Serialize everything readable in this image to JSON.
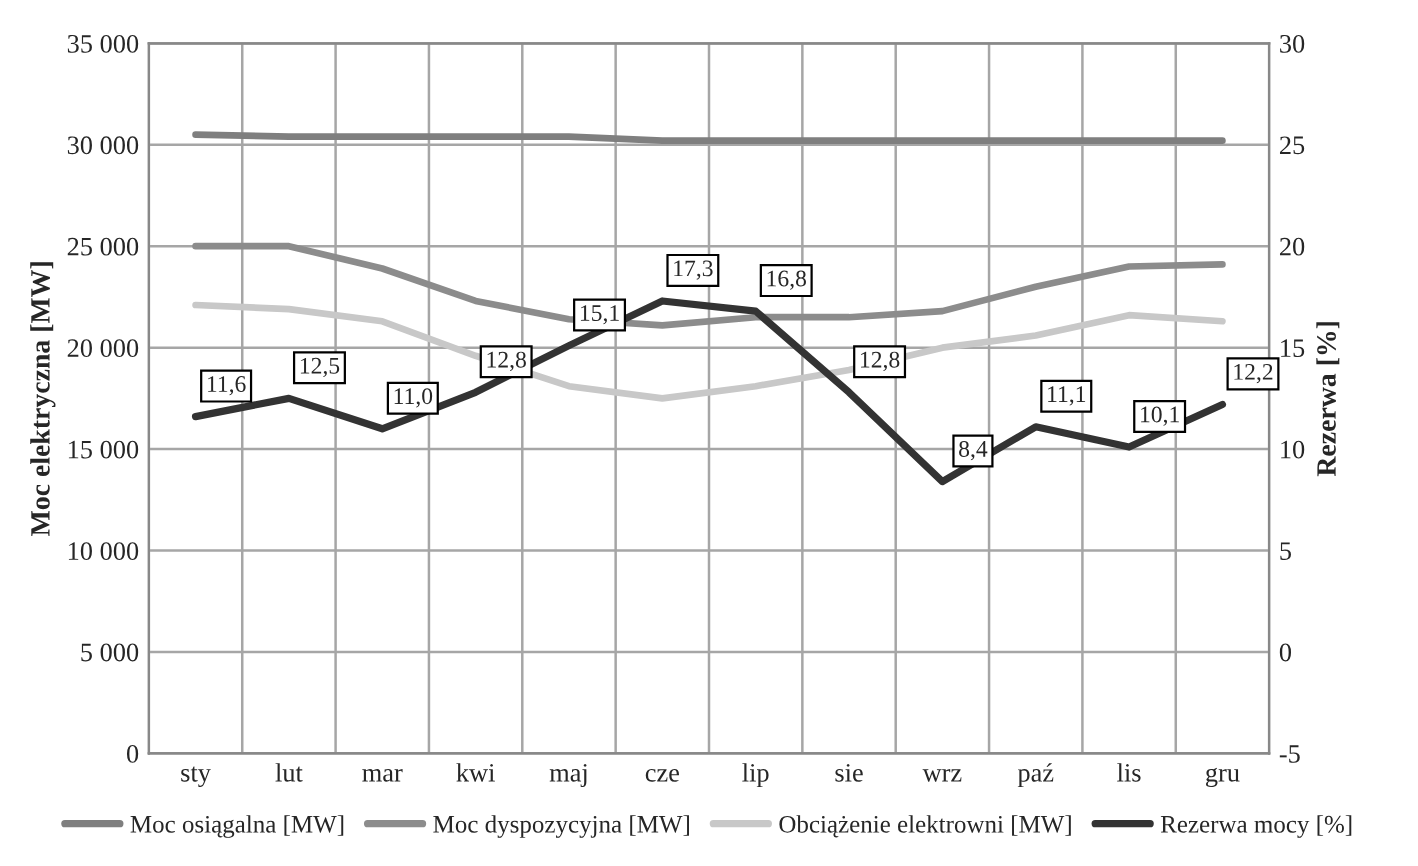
{
  "chart_data": {
    "type": "line",
    "ylabel": "Moc elektryczna [MW]",
    "y2label": "Rezerwa [%]",
    "categories": [
      "sty",
      "lut",
      "mar",
      "kwi",
      "maj",
      "cze",
      "lip",
      "sie",
      "wrz",
      "paź",
      "lis",
      "gru"
    ],
    "series": [
      {
        "name": "Moc osiągalna [MW]",
        "color": "#7f7f7f",
        "values": [
          30500,
          30400,
          30400,
          30400,
          30400,
          30200,
          30200,
          30200,
          30200,
          30200,
          30200,
          30200
        ]
      },
      {
        "name": "Moc dyspozycyjna [MW]",
        "color": "#8c8c8c",
        "values": [
          25000,
          25000,
          23900,
          22300,
          21400,
          21100,
          21500,
          21500,
          21800,
          23000,
          24000,
          24100
        ]
      },
      {
        "name": "Obciążenie elektrowni [MW]",
        "color": "#c8c8c8",
        "values": [
          22100,
          21900,
          21300,
          19600,
          18100,
          17500,
          18100,
          18900,
          20000,
          20600,
          21600,
          21300
        ]
      },
      {
        "name": "Rezerwa mocy [%]",
        "color": "#333333",
        "axis": "y2",
        "values": [
          11.6,
          12.5,
          11.0,
          12.8,
          15.1,
          17.3,
          16.8,
          12.8,
          8.4,
          11.1,
          10.1,
          12.2
        ],
        "value_labels": [
          "11,6",
          "12,5",
          "11,0",
          "12,8",
          "15,1",
          "17,3",
          "16,8",
          "12,8",
          "8,4",
          "11,1",
          "10,1",
          "12,2"
        ]
      }
    ],
    "ylim": [
      0,
      35000
    ],
    "yticks": [
      {
        "value": 0,
        "label": "0"
      },
      {
        "value": 5000,
        "label": "5 000"
      },
      {
        "value": 10000,
        "label": "10 000"
      },
      {
        "value": 15000,
        "label": "15 000"
      },
      {
        "value": 20000,
        "label": "20 000"
      },
      {
        "value": 25000,
        "label": "25 000"
      },
      {
        "value": 30000,
        "label": "30 000"
      },
      {
        "value": 35000,
        "label": "35 000"
      }
    ],
    "y2lim": [
      -5,
      30
    ],
    "y2ticks": [
      -5,
      0,
      5,
      10,
      15,
      20,
      25,
      30
    ],
    "grid": true,
    "legend": "bottom",
    "line_style": "solid"
  }
}
